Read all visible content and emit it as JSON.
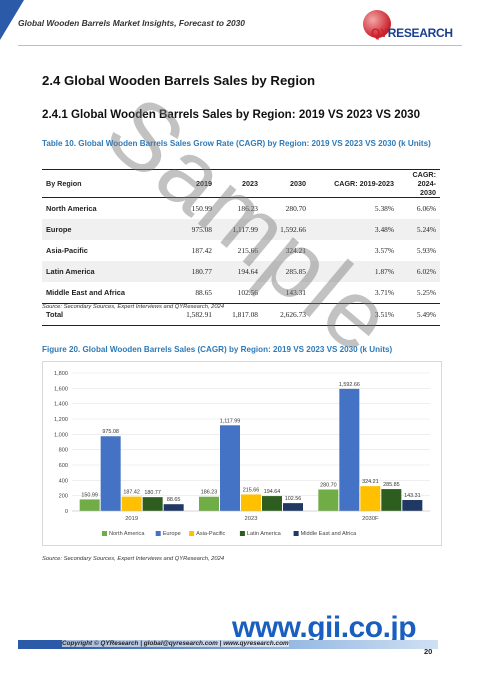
{
  "header": {
    "title": "Global Wooden Barrels Market Insights, Forecast to 2030",
    "logo_text_qy": "QY",
    "logo_text_research": "RESEARCH"
  },
  "section": {
    "heading": "2.4  Global Wooden Barrels Sales by Region",
    "subheading": "2.4.1  Global Wooden Barrels Sales by Region: 2019 VS 2023 VS 2030"
  },
  "table": {
    "caption": "Table 10.   Global Wooden Barrels Sales Grow Rate (CAGR) by Region: 2019 VS 2023 VS 2030 (k Units)",
    "columns": [
      "By Region",
      "2019",
      "2023",
      "2030",
      "CAGR: 2019-2023",
      "CAGR: 2024-2030"
    ],
    "rows": [
      [
        "North America",
        "150.99",
        "186.23",
        "280.70",
        "5.38%",
        "6.06%"
      ],
      [
        "Europe",
        "975.08",
        "1,117.99",
        "1,592.66",
        "3.48%",
        "5.24%"
      ],
      [
        "Asia-Pacific",
        "187.42",
        "215.66",
        "324.21",
        "3.57%",
        "5.93%"
      ],
      [
        "Latin America",
        "180.77",
        "194.64",
        "285.85",
        "1.87%",
        "6.02%"
      ],
      [
        "Middle East and Africa",
        "88.65",
        "102.56",
        "143.31",
        "3.71%",
        "5.25%"
      ],
      [
        "Total",
        "1,582.91",
        "1,817.08",
        "2,626.73",
        "3.51%",
        "5.49%"
      ]
    ],
    "source": "Source: Secondary Sources, Expert Interviews and QYResearch, 2024"
  },
  "figure": {
    "caption": "Figure 20.   Global Wooden Barrels Sales (CAGR) by Region: 2019 VS 2023 VS 2030 (k Units)",
    "source": "Source: Secondary Sources, Expert Interviews and QYResearch, 2024"
  },
  "chart_data": {
    "type": "bar",
    "categories": [
      "2019",
      "2023",
      "2030F"
    ],
    "series": [
      {
        "name": "North America",
        "values": [
          150.99,
          186.23,
          280.7
        ],
        "labels": [
          "150.99",
          "186.23",
          "280.70"
        ],
        "color": "#70ad47"
      },
      {
        "name": "Europe",
        "values": [
          975.08,
          1117.99,
          1592.66
        ],
        "labels": [
          "975.08",
          "1,117.99",
          "1,592.66"
        ],
        "color": "#4472c4"
      },
      {
        "name": "Asia-Pacific",
        "values": [
          187.42,
          215.66,
          324.21
        ],
        "labels": [
          "187.42",
          "215.66",
          "324.21"
        ],
        "color": "#ffc000"
      },
      {
        "name": "Latin America",
        "values": [
          180.77,
          194.64,
          285.85
        ],
        "labels": [
          "180.77",
          "194.64",
          "285.85"
        ],
        "color": "#2e5e1f"
      },
      {
        "name": "Middle East and Africa",
        "values": [
          88.65,
          102.56,
          143.31
        ],
        "labels": [
          "88.65",
          "102.56",
          "143.31"
        ],
        "color": "#203864"
      }
    ],
    "ylim": [
      0,
      1800
    ],
    "yticks": [
      "0",
      "200",
      "400",
      "600",
      "800",
      "1,000",
      "1,200",
      "1,400",
      "1,600",
      "1,800"
    ],
    "grid": true,
    "legend_position": "bottom"
  },
  "watermark": {
    "sample": "Sample",
    "gii": "www.gii.co.jp"
  },
  "footer": {
    "text": "Copyright © QYResearch | global@qyresearch.com | www.qyresearch.com",
    "page": "20"
  }
}
